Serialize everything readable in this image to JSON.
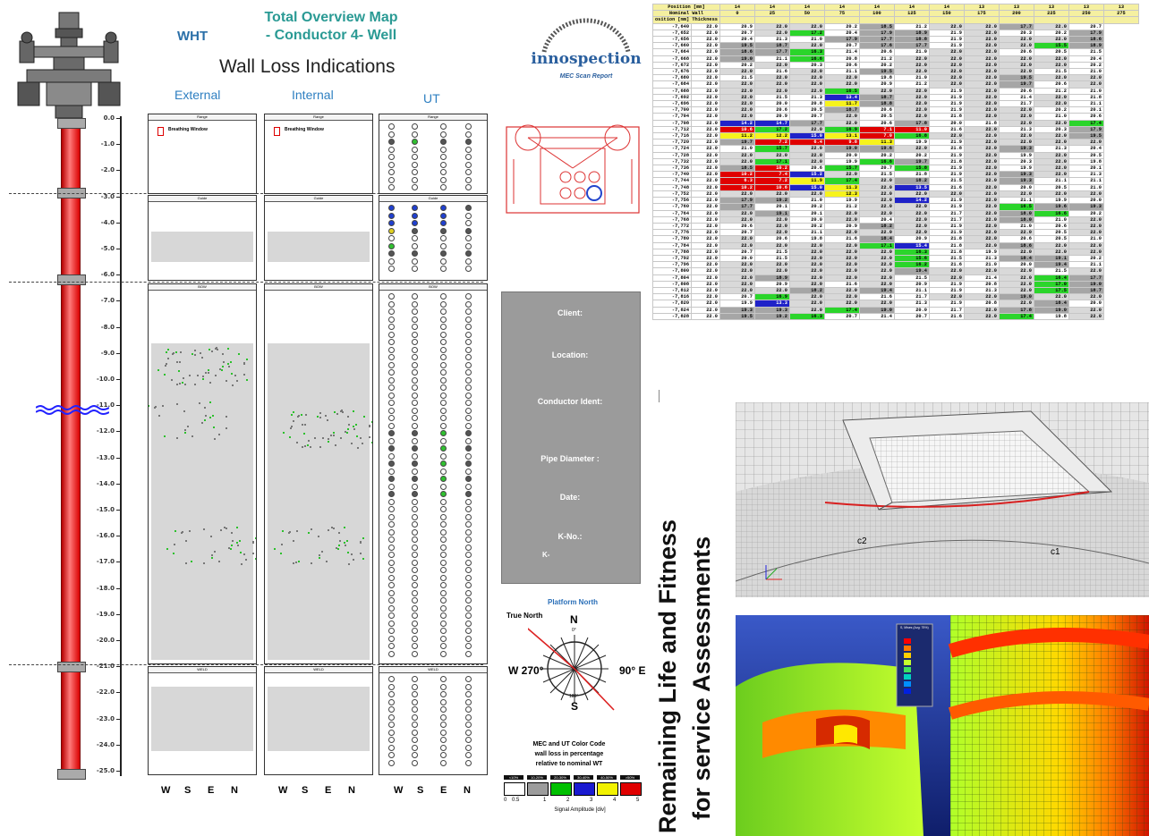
{
  "header": {
    "wht": "WHT",
    "title_line1": "Total Overview Map",
    "title_line2": "- Conductor 4- Well",
    "subtitle": "Wall Loss Indications",
    "col_external": "External",
    "col_internal": "Internal",
    "col_ut": "UT"
  },
  "depth_ticks": [
    "0.0",
    "-1.0",
    "-2.0",
    "-3.0",
    "-4.0",
    "-5.0",
    "-6.0",
    "-7.0",
    "-8.0",
    "-9.0",
    "-10.0",
    "-11.0",
    "-12.0",
    "-13.0",
    "-14.0",
    "-15.0",
    "-16.0",
    "-17.0",
    "-18.0",
    "-19.0",
    "-20.0",
    "-21.0",
    "-22.0",
    "-23.0",
    "-24.0",
    "-25.0"
  ],
  "panel_bands": {
    "range": "Range",
    "guide": "Guide",
    "bow": "BOW",
    "weld": "WELD"
  },
  "legend_item": "Breathing Window",
  "bottom_axis": [
    "W",
    "S",
    "E",
    "N"
  ],
  "logo": {
    "name": "innospection",
    "tagline": "MEC Scan Report"
  },
  "info_box": {
    "client": "Client:",
    "location": "Location:",
    "conductor": "Conductor Ident:",
    "pipe": "Pipe Diameter :",
    "date": "Date:",
    "kno": "K-No.:",
    "k": "K-"
  },
  "compass": {
    "platform_north": "Platform North",
    "true_north": "True North",
    "n": "N",
    "s": "S",
    "e": "E",
    "w": "W",
    "e_deg": "90° E",
    "w_deg": "W 270°",
    "n_deg": "0°",
    "s_deg": "180°"
  },
  "color_code": {
    "line1": "MEC and UT Color Code",
    "line2": "wall loss in percentage",
    "line3": "relative to nominal WT",
    "bins": [
      "<10%",
      "10-20%",
      "20-30%",
      "30-40%",
      "40-50%",
      ">50%"
    ],
    "bin_colors": [
      "#ffffff",
      "#9c9c9c",
      "#00c000",
      "#1a1ad0",
      "#f2f200",
      "#e00000"
    ],
    "scale_ticks": [
      "0",
      "0.5",
      "1",
      "2",
      "3",
      "4",
      "5"
    ],
    "scale_label": "Signal Amplitude [div]"
  },
  "sheet": {
    "header_rows": [
      {
        "label": "Position [mm]",
        "values": [
          "14",
          "14",
          "14",
          "14",
          "14",
          "14",
          "14",
          "13",
          "13",
          "13",
          "13",
          "13"
        ]
      },
      {
        "label": "Nominal Wall",
        "values": [
          "0",
          "25",
          "50",
          "75",
          "100",
          "125",
          "150",
          "175",
          "200",
          "225",
          "250",
          "275"
        ]
      }
    ],
    "left_header": "osition [mm]  Thickness",
    "rows": [
      [
        "-7,640",
        "22.0",
        "20.9",
        "22.0",
        "22.0",
        "20.2",
        "18.5",
        "21.2",
        "22.0",
        "22.0",
        "17.7",
        "22.0",
        "20.7"
      ],
      [
        "-7,652",
        "22.0",
        "20.7",
        "22.0",
        "17.2",
        "20.4",
        "17.9",
        "18.9",
        "21.9",
        "22.0",
        "20.3",
        "20.2",
        "17.9"
      ],
      [
        "-7,656",
        "22.0",
        "20.4",
        "21.3",
        "21.0",
        "17.9",
        "17.7",
        "18.8",
        "21.9",
        "22.0",
        "22.0",
        "22.0",
        "18.6"
      ],
      [
        "-7,660",
        "22.0",
        "19.5",
        "18.7",
        "22.0",
        "20.7",
        "17.6",
        "17.7",
        "21.9",
        "22.0",
        "22.0",
        "15.5",
        "18.9"
      ],
      [
        "-7,664",
        "22.0",
        "18.6",
        "17.7",
        "16.3",
        "21.4",
        "20.6",
        "21.0",
        "22.0",
        "22.0",
        "20.6",
        "20.5",
        "21.5"
      ],
      [
        "-7,668",
        "22.0",
        "19.0",
        "21.1",
        "16.6",
        "20.8",
        "21.2",
        "22.0",
        "22.0",
        "22.0",
        "22.0",
        "22.0",
        "20.4"
      ],
      [
        "-7,672",
        "22.0",
        "20.2",
        "22.0",
        "20.3",
        "20.6",
        "20.2",
        "22.0",
        "22.0",
        "22.0",
        "22.0",
        "22.0",
        "20.2"
      ],
      [
        "-7,676",
        "22.0",
        "22.0",
        "21.6",
        "22.0",
        "21.1",
        "19.5",
        "22.0",
        "22.0",
        "22.0",
        "22.0",
        "21.5",
        "21.0"
      ],
      [
        "-7,680",
        "22.0",
        "21.5",
        "22.0",
        "22.0",
        "22.0",
        "19.8",
        "21.0",
        "22.0",
        "22.0",
        "19.5",
        "22.0",
        "22.0"
      ],
      [
        "-7,684",
        "22.0",
        "22.0",
        "22.0",
        "22.0",
        "22.0",
        "20.9",
        "21.2",
        "22.0",
        "22.0",
        "19.7",
        "20.6",
        "22.0"
      ],
      [
        "-7,688",
        "22.0",
        "22.0",
        "22.0",
        "22.0",
        "16.5",
        "22.0",
        "22.0",
        "21.9",
        "22.0",
        "20.6",
        "21.2",
        "21.0"
      ],
      [
        "-7,692",
        "22.0",
        "22.0",
        "21.5",
        "21.3",
        "13.4",
        "18.7",
        "22.0",
        "21.9",
        "22.0",
        "21.4",
        "22.0",
        "21.8"
      ],
      [
        "-7,696",
        "22.0",
        "22.0",
        "20.0",
        "20.8",
        "11.7",
        "18.8",
        "22.0",
        "21.9",
        "22.0",
        "21.7",
        "22.0",
        "21.1"
      ],
      [
        "-7,700",
        "22.0",
        "22.0",
        "20.6",
        "20.5",
        "18.7",
        "20.6",
        "22.0",
        "21.9",
        "22.0",
        "22.0",
        "20.2",
        "20.1"
      ],
      [
        "-7,704",
        "22.0",
        "22.0",
        "20.9",
        "20.7",
        "22.0",
        "20.5",
        "22.0",
        "21.8",
        "22.0",
        "22.0",
        "21.0",
        "20.6"
      ],
      [
        "-7,708",
        "22.0",
        "14.2",
        "14.7",
        "17.7",
        "22.0",
        "20.6",
        "17.8",
        "20.0",
        "21.8",
        "22.0",
        "22.0",
        "17.4"
      ],
      [
        "-7,712",
        "22.0",
        "10.6",
        "17.2",
        "22.0",
        "16.9",
        "7.1",
        "11.0",
        "21.6",
        "22.0",
        "21.3",
        "20.3",
        "17.9"
      ],
      [
        "-7,716",
        "22.0",
        "11.2",
        "12.2",
        "15.0",
        "13.1",
        "7.0",
        "16.8",
        "22.0",
        "22.0",
        "22.0",
        "22.0",
        "19.5"
      ],
      [
        "-7,720",
        "22.0",
        "19.7",
        "7.2",
        "6.4",
        "9.8",
        "11.3",
        "19.9",
        "21.9",
        "22.0",
        "22.0",
        "22.0",
        "22.0"
      ],
      [
        "-7,724",
        "22.0",
        "21.0",
        "15.7",
        "22.0",
        "19.0",
        "19.6",
        "22.0",
        "21.8",
        "22.0",
        "19.3",
        "21.3",
        "20.4"
      ],
      [
        "-7,728",
        "22.0",
        "22.0",
        "22.0",
        "22.0",
        "20.0",
        "20.2",
        "20.2",
        "21.9",
        "22.0",
        "19.9",
        "22.0",
        "20.5"
      ],
      [
        "-7,732",
        "22.0",
        "22.0",
        "17.1",
        "22.0",
        "19.9",
        "16.6",
        "19.7",
        "21.8",
        "22.0",
        "20.3",
        "22.0",
        "19.8"
      ],
      [
        "-7,736",
        "22.0",
        "18.5",
        "10.2",
        "20.6",
        "15.7",
        "20.7",
        "15.8",
        "21.9",
        "22.0",
        "19.9",
        "22.0",
        "20.1"
      ],
      [
        "-7,740",
        "22.0",
        "10.2",
        "7.4",
        "15.2",
        "22.0",
        "21.5",
        "21.8",
        "21.9",
        "22.0",
        "19.3",
        "22.0",
        "21.3"
      ],
      [
        "-7,744",
        "22.0",
        "6.3",
        "7.2",
        "11.9",
        "17.4",
        "22.0",
        "18.2",
        "21.5",
        "22.0",
        "19.3",
        "21.1",
        "21.1"
      ],
      [
        "-7,748",
        "22.0",
        "10.2",
        "10.6",
        "15.0",
        "11.3",
        "22.0",
        "13.5",
        "21.6",
        "22.0",
        "20.0",
        "20.5",
        "21.0"
      ],
      [
        "-7,752",
        "22.0",
        "22.0",
        "22.0",
        "22.0",
        "12.3",
        "22.0",
        "22.0",
        "22.0",
        "22.0",
        "22.0",
        "22.0",
        "22.0"
      ],
      [
        "-7,756",
        "22.0",
        "17.9",
        "19.2",
        "21.0",
        "19.9",
        "22.0",
        "14.2",
        "21.9",
        "22.0",
        "21.1",
        "19.9",
        "20.0"
      ],
      [
        "-7,760",
        "22.0",
        "17.7",
        "20.1",
        "20.2",
        "21.2",
        "22.0",
        "22.0",
        "21.9",
        "22.0",
        "16.5",
        "19.6",
        "19.3"
      ],
      [
        "-7,764",
        "22.0",
        "22.0",
        "19.1",
        "20.1",
        "22.0",
        "22.0",
        "22.0",
        "21.7",
        "22.0",
        "18.0",
        "16.6",
        "20.2"
      ],
      [
        "-7,768",
        "22.0",
        "22.0",
        "22.0",
        "20.0",
        "22.0",
        "20.4",
        "22.0",
        "21.7",
        "22.0",
        "18.0",
        "21.0",
        "22.0"
      ],
      [
        "-7,772",
        "22.0",
        "20.6",
        "22.0",
        "20.2",
        "20.9",
        "18.2",
        "22.0",
        "21.9",
        "22.0",
        "21.0",
        "20.6",
        "22.0"
      ],
      [
        "-7,776",
        "22.0",
        "20.7",
        "22.0",
        "21.1",
        "22.0",
        "22.0",
        "22.0",
        "21.9",
        "22.0",
        "22.0",
        "20.5",
        "22.0"
      ],
      [
        "-7,780",
        "22.0",
        "22.0",
        "20.6",
        "19.8",
        "21.6",
        "18.4",
        "20.9",
        "21.8",
        "22.0",
        "20.6",
        "20.5",
        "21.0"
      ],
      [
        "-7,784",
        "22.0",
        "22.0",
        "22.0",
        "22.0",
        "22.0",
        "17.1",
        "15.4",
        "21.8",
        "22.0",
        "18.6",
        "22.0",
        "22.0"
      ],
      [
        "-7,788",
        "22.0",
        "20.7",
        "21.5",
        "22.0",
        "22.0",
        "22.0",
        "16.3",
        "21.8",
        "19.9",
        "22.0",
        "22.0",
        "22.0"
      ],
      [
        "-7,792",
        "22.0",
        "20.0",
        "21.5",
        "22.0",
        "22.0",
        "22.0",
        "15.6",
        "21.5",
        "21.3",
        "18.4",
        "19.1",
        "20.2"
      ],
      [
        "-7,796",
        "22.0",
        "22.0",
        "22.0",
        "22.0",
        "22.0",
        "22.0",
        "16.2",
        "21.6",
        "21.0",
        "20.0",
        "19.4",
        "21.1"
      ],
      [
        "-7,800",
        "22.0",
        "22.0",
        "22.0",
        "22.0",
        "22.0",
        "22.0",
        "19.4",
        "22.0",
        "22.0",
        "22.0",
        "21.5",
        "22.0"
      ],
      [
        "-7,804",
        "22.0",
        "22.0",
        "18.9",
        "22.0",
        "22.0",
        "22.0",
        "21.5",
        "22.0",
        "21.4",
        "22.0",
        "16.4",
        "17.7"
      ],
      [
        "-7,808",
        "22.0",
        "22.0",
        "20.9",
        "22.0",
        "21.6",
        "22.0",
        "20.9",
        "21.9",
        "20.8",
        "22.0",
        "17.0",
        "19.0"
      ],
      [
        "-7,812",
        "22.0",
        "22.0",
        "22.0",
        "18.2",
        "22.0",
        "19.4",
        "21.1",
        "21.9",
        "21.3",
        "22.0",
        "17.5",
        "18.7"
      ],
      [
        "-7,816",
        "22.0",
        "20.7",
        "16.9",
        "22.0",
        "22.0",
        "21.6",
        "21.7",
        "22.0",
        "22.0",
        "19.0",
        "22.0",
        "22.0"
      ],
      [
        "-7,820",
        "22.0",
        "19.9",
        "13.3",
        "22.0",
        "22.0",
        "22.0",
        "21.3",
        "21.9",
        "20.8",
        "22.0",
        "18.4",
        "20.0"
      ],
      [
        "-7,824",
        "22.0",
        "19.3",
        "19.3",
        "22.0",
        "17.4",
        "19.0",
        "20.0",
        "21.7",
        "22.0",
        "17.8",
        "19.0",
        "22.0"
      ],
      [
        "-7,828",
        "22.0",
        "19.5",
        "19.2",
        "16.3",
        "20.7",
        "21.4",
        "20.7",
        "21.6",
        "22.0",
        "17.4",
        "19.8",
        "22.0"
      ]
    ]
  },
  "vertical_title_line1": "Remaining Life and Fitness",
  "vertical_title_line2": "for service Assessments",
  "fea": {
    "label_c2": "c2",
    "label_c1": "c1",
    "legend_title": "S, Mises (Avg: 75%)"
  }
}
